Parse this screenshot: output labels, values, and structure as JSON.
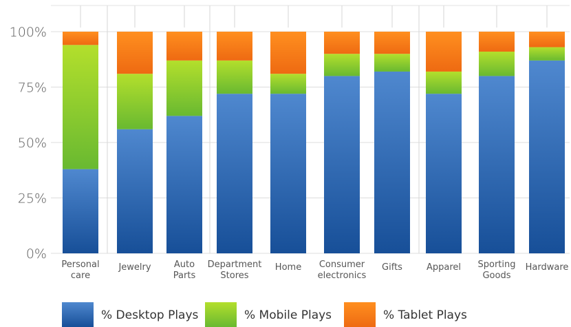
{
  "chart_data": {
    "type": "bar",
    "stacked": true,
    "orientation": "vertical",
    "categories": [
      [
        "Personal",
        "care"
      ],
      [
        "Jewelry"
      ],
      [
        "Auto",
        "Parts"
      ],
      [
        "Department",
        "Stores"
      ],
      [
        "Home"
      ],
      [
        "Consumer",
        "electronics"
      ],
      [
        "Gifts"
      ],
      [
        "Apparel"
      ],
      [
        "Sporting",
        "Goods"
      ],
      [
        "Hardware"
      ]
    ],
    "series": [
      {
        "name": "% Desktop Plays",
        "color": "#1f5eab",
        "values": [
          38,
          56,
          62,
          72,
          72,
          80,
          82,
          72,
          80,
          87
        ]
      },
      {
        "name": "% Mobile Plays",
        "color": "#7ac532",
        "values": [
          56,
          25,
          25,
          15,
          9,
          10,
          8,
          10,
          11,
          6
        ]
      },
      {
        "name": "% Tablet Plays",
        "color": "#f27a1a",
        "values": [
          6,
          19,
          13,
          13,
          19,
          10,
          10,
          18,
          9,
          7
        ]
      }
    ],
    "yticks": [
      "0%",
      "25%",
      "50%",
      "75%",
      "100%"
    ],
    "ylim": [
      0,
      100
    ],
    "grid": true,
    "legend_position": "bottom"
  }
}
